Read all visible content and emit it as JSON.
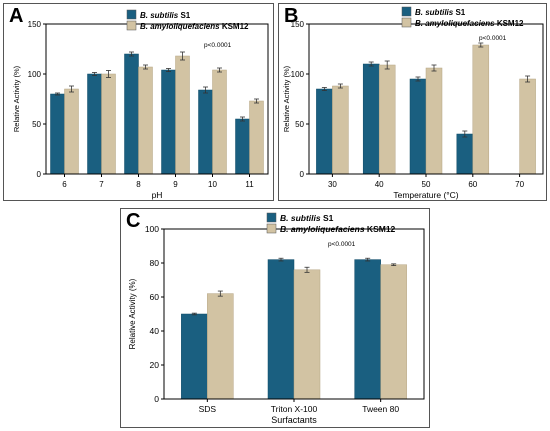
{
  "colors": {
    "series1": "#1a5f80",
    "series2": "#d2c3a3",
    "error": "#333333"
  },
  "chart_data": [
    {
      "panel": "A",
      "type": "bar",
      "xlabel": "pH",
      "ylabel": "Relative Activity (%)",
      "ylim": [
        0,
        150
      ],
      "yticks": [
        0,
        50,
        100,
        150
      ],
      "categories": [
        "6",
        "7",
        "8",
        "9",
        "10",
        "11"
      ],
      "annotation": "p<0.0001",
      "legend_position": "top-center",
      "series": [
        {
          "name": "B. subtilis S1",
          "values": [
            80,
            100,
            120,
            104,
            84,
            55
          ],
          "errors": [
            1,
            1.5,
            2,
            1.5,
            3,
            2
          ]
        },
        {
          "name": "B. amyloliquefaciens KSM12",
          "values": [
            85,
            100,
            107,
            118,
            104,
            73
          ],
          "errors": [
            3,
            3.5,
            2,
            4,
            2,
            2
          ]
        }
      ]
    },
    {
      "panel": "B",
      "type": "bar",
      "xlabel": "Temperature (°C)",
      "ylabel": "Relative Activity (%)",
      "ylim": [
        0,
        150
      ],
      "yticks": [
        0,
        50,
        100,
        150
      ],
      "categories": [
        "30",
        "40",
        "50",
        "60",
        "70"
      ],
      "annotation": "p<0.0001",
      "legend_position": "top-center",
      "series": [
        {
          "name": "B. subtilis S1",
          "values": [
            85,
            110,
            95,
            40,
            null
          ],
          "errors": [
            1.5,
            2,
            2,
            3,
            0
          ]
        },
        {
          "name": "B. amyloliquefaciens KSM12",
          "values": [
            88,
            109,
            106,
            129,
            95
          ],
          "errors": [
            2,
            4,
            3,
            2,
            3
          ]
        }
      ]
    },
    {
      "panel": "C",
      "type": "bar",
      "xlabel": "Surfactants",
      "ylabel": "Relative Activity (%)",
      "ylim": [
        0,
        100
      ],
      "yticks": [
        0,
        20,
        40,
        60,
        80,
        100
      ],
      "categories": [
        "SDS",
        "Triton X-100",
        "Tween 80"
      ],
      "annotation": "p<0.0001",
      "legend_position": "top-center",
      "series": [
        {
          "name": "B. subtilis S1",
          "values": [
            50,
            82,
            82
          ],
          "errors": [
            0.5,
            0.8,
            0.8
          ]
        },
        {
          "name": "B. amyloliquefaciens KSM12",
          "values": [
            62,
            76,
            79
          ],
          "errors": [
            1.5,
            1.5,
            0.5
          ]
        }
      ]
    }
  ]
}
